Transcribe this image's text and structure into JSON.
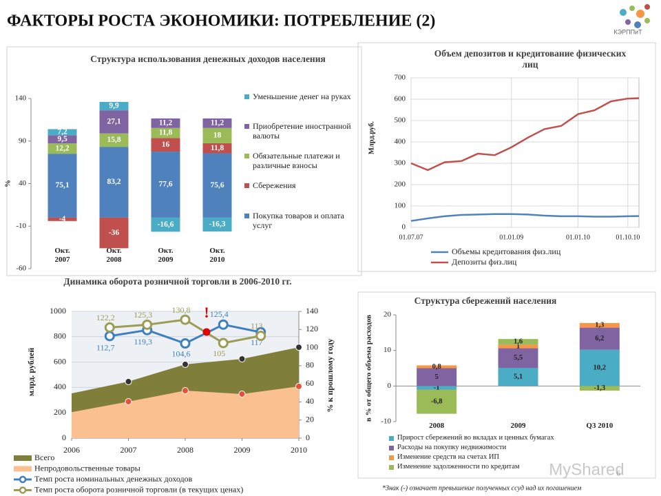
{
  "header": {
    "title": "ФАКТОРЫ РОСТА ЭКОНОМИКИ: ПОТРЕБЛЕНИЕ (2)",
    "logo": "КЭРППиТ"
  },
  "footnote": "*Знак (-) означает превышение полученных ссуд над их погашением",
  "page_number": "6",
  "watermark": "MyShared",
  "chart_data": [
    {
      "type": "stacked_bar",
      "title": "Структура использования денежных доходов населения",
      "y_label": "%",
      "categories": [
        "Окт. 2007",
        "Окт. 2008",
        "Окт. 2009",
        "Окт. 2010"
      ],
      "ylim": [
        -60,
        140
      ],
      "yticks": [
        -60,
        -10,
        40,
        90,
        140
      ],
      "series": [
        {
          "name": "Покупка товаров и оплата услуг",
          "color": "#4f81bd",
          "values": [
            75.1,
            83.2,
            77.6,
            75.6
          ],
          "value_labels": [
            "75,1",
            "83,2",
            "77,6",
            "75,6"
          ]
        },
        {
          "name": "Сбережения",
          "color": "#c0504d",
          "values": [
            -4,
            -36,
            16,
            11.8
          ],
          "value_labels": [
            "-4",
            "-36",
            "16",
            "11,8"
          ]
        },
        {
          "name": "Обязательные платежи и различные взносы",
          "color": "#9bbb59",
          "values": [
            12.2,
            15.8,
            11.8,
            18
          ],
          "value_labels": [
            "12,2",
            "15,8",
            "11,8",
            "18"
          ]
        },
        {
          "name": "Приобретение иностранной валюты",
          "color": "#8064a2",
          "values": [
            9.5,
            27.1,
            11.2,
            11.2
          ],
          "value_labels": [
            "9,5",
            "27,1",
            "11,2",
            "11,2"
          ]
        },
        {
          "name": "Уменьшение денег на руках",
          "color": "#4bacc6",
          "values": [
            7.2,
            9.9,
            -16.6,
            -16.3
          ],
          "value_labels": [
            "7,2",
            "9,9",
            "-16,6",
            "-16,3"
          ]
        }
      ]
    },
    {
      "type": "line",
      "title": "Объем депозитов и кредитование физических лиц",
      "y_label": "Млрд.руб.",
      "x": [
        "2007-07-01",
        "2007-10-01",
        "2008-01-01",
        "2008-04-01",
        "2008-07-01",
        "2008-10-01",
        "2009-01-01",
        "2009-04-01",
        "2009-07-01",
        "2009-10-01",
        "2010-01-01",
        "2010-04-01",
        "2010-07-01",
        "2010-10-01",
        "2010-12-01"
      ],
      "xlim": [
        "2007-07-01",
        "2010-12-01"
      ],
      "xticks": [
        {
          "value": "2007-07-01",
          "label": "01.07.07"
        },
        {
          "value": "2009-01-01",
          "label": "01.01.09"
        },
        {
          "value": "2010-01-01",
          "label": "01.01.10"
        },
        {
          "value": "2010-10-01",
          "label": "01.10.10"
        }
      ],
      "ylim": [
        0,
        700
      ],
      "yticks": [
        0,
        100,
        200,
        300,
        400,
        500,
        600,
        700
      ],
      "grid": true,
      "series": [
        {
          "name": "Объемы кредитования физ.лиц",
          "color": "#4f81bd",
          "values": [
            30,
            42,
            52,
            58,
            60,
            62,
            62,
            60,
            55,
            52,
            52,
            50,
            50,
            52,
            53
          ]
        },
        {
          "name": "Депозиты физ.лиц",
          "color": "#c0504d",
          "values": [
            300,
            268,
            305,
            310,
            345,
            338,
            375,
            420,
            460,
            475,
            530,
            548,
            590,
            603,
            605
          ]
        }
      ]
    },
    {
      "type": "area_line",
      "title": "Динамика оборота розничной торговли в 2006-2010 гг.",
      "y_label": "млрд. рублей",
      "y2_label": "% к прошлому году",
      "annotation": "!",
      "x": [
        2006,
        2007,
        2008,
        2009,
        2010
      ],
      "xlim": [
        2006,
        2010
      ],
      "xticks": [
        2006,
        2007,
        2008,
        2009,
        2010
      ],
      "ylim": [
        0,
        1000
      ],
      "yticks": [
        0,
        200,
        400,
        600,
        800,
        1000
      ],
      "y2lim": [
        0,
        140
      ],
      "y2ticks": [
        0,
        20,
        40,
        60,
        80,
        100,
        120,
        140
      ],
      "grid": true,
      "series": [
        {
          "name": "Всего",
          "type": "area",
          "color": "#7f7f3a",
          "marker_color": "#333333",
          "values": [
            353,
            446,
            582,
            625,
            717
          ]
        },
        {
          "name": "Непродовольственные товары",
          "type": "area",
          "color": "#fbc08f",
          "marker_color": "#e8503a",
          "values": [
            205,
            288,
            375,
            348,
            408
          ]
        },
        {
          "name": "Темп роста номинальных денежных доходов",
          "type": "line",
          "axis": "y2",
          "color": "#3f7fbf",
          "x": [
            2006.67,
            2007.33,
            2008,
            2008.67,
            2009.33
          ],
          "values": [
            112.7,
            119.3,
            104.6,
            125.4,
            117
          ],
          "value_labels": [
            "112,7",
            "119,3",
            "104,6",
            "125,4",
            "117"
          ]
        },
        {
          "name": "Темп роста оборота розничной торговли (в текущих ценах)",
          "type": "line",
          "axis": "y2",
          "color": "#9c9c55",
          "x": [
            2006.67,
            2007.33,
            2008,
            2008.67,
            2009.33
          ],
          "values": [
            122.2,
            125.3,
            130.8,
            105,
            113
          ],
          "value_labels": [
            "122,2",
            "125,3",
            "130,8",
            "105",
            "113"
          ]
        }
      ]
    },
    {
      "type": "stacked_bar",
      "title": "Структура сбережений населения",
      "y_label": "в % от общего объема расходов",
      "categories": [
        "2008",
        "2009",
        "Q3 2010"
      ],
      "ylim": [
        -10,
        20
      ],
      "yticks": [
        -10,
        0,
        10,
        20
      ],
      "series": [
        {
          "name": "Прирост сбережений во вкладах и ценных бумагах",
          "color": "#4bacc6",
          "values": [
            -1,
            5.1,
            10.2
          ],
          "value_labels": [
            "-1",
            "5,1",
            "10,2"
          ]
        },
        {
          "name": "Расходы на покупку недвижимости",
          "color": "#8064a2",
          "values": [
            5,
            5.5,
            6.2
          ],
          "value_labels": [
            "5",
            "5,5",
            "6,2"
          ]
        },
        {
          "name": "Изменение средств на счетах ИП",
          "color": "#f79646",
          "values": [
            0.8,
            1,
            1.3
          ],
          "value_labels": [
            "0,8",
            "1",
            "1,3"
          ]
        },
        {
          "name": "Изменение задолженности по кредитам",
          "color": "#9bbb59",
          "values": [
            -6.8,
            1.6,
            -1.3
          ],
          "value_labels": [
            "-6,8",
            "1,6",
            "-1,3"
          ]
        }
      ]
    }
  ]
}
